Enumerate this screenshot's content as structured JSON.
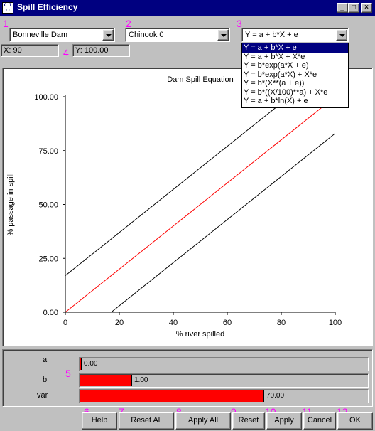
{
  "window": {
    "title": "Spill Efficiency",
    "icon_text": "C 1 ··",
    "minimize": "_",
    "maximize": "□",
    "close": "×"
  },
  "markers": [
    "1",
    "2",
    "3",
    "4",
    "5",
    "6",
    "7",
    "8",
    "9",
    "10",
    "11",
    "12"
  ],
  "dam_select": {
    "value": "Bonneville Dam"
  },
  "species_select": {
    "value": "Chinook 0"
  },
  "equation_select": {
    "value": "Y = a + b*X + e",
    "options": [
      "Y = a + b*X + e",
      "Y = a + b*X + X*e",
      "Y = b*exp(a*X + e)",
      "Y = b*exp(a*X) + X*e",
      "Y = b*(X**(a + e))",
      "Y = b*((X/100)**a) + X*e",
      "Y = a + b*ln(X) + e"
    ],
    "selected_index": 0
  },
  "readouts": {
    "x": "X: 90",
    "y": "Y: 100.00"
  },
  "chart_data": {
    "type": "line",
    "title": "Dam Spill Equation",
    "xlabel": "% river spilled",
    "ylabel": "% passage in spill",
    "xlim": [
      0,
      100
    ],
    "ylim": [
      0,
      100
    ],
    "x_ticks": [
      "0",
      "20",
      "40",
      "60",
      "80",
      "100"
    ],
    "y_ticks": [
      "0.00",
      "25.00",
      "50.00",
      "75.00",
      "100.00"
    ],
    "grid": false,
    "series": [
      {
        "color": "#000000",
        "x": [
          0,
          50,
          90
        ],
        "y": [
          17,
          67,
          107
        ]
      },
      {
        "color": "#ff0000",
        "x": [
          0,
          50,
          100
        ],
        "y": [
          0,
          50,
          100
        ]
      },
      {
        "color": "#000000",
        "x": [
          17,
          60,
          100
        ],
        "y": [
          0,
          43,
          83
        ]
      }
    ]
  },
  "sliders": [
    {
      "label": "a",
      "value": "0.00",
      "fill": 0.0
    },
    {
      "label": "b",
      "value": "1.00",
      "fill": 0.18
    },
    {
      "label": "var",
      "value": "70.00",
      "fill": 0.64
    }
  ],
  "buttons": {
    "help": "Help",
    "reset_all": "Reset All",
    "apply_all": "Apply All",
    "reset": "Reset",
    "apply": "Apply",
    "cancel": "Cancel",
    "ok": "OK"
  }
}
